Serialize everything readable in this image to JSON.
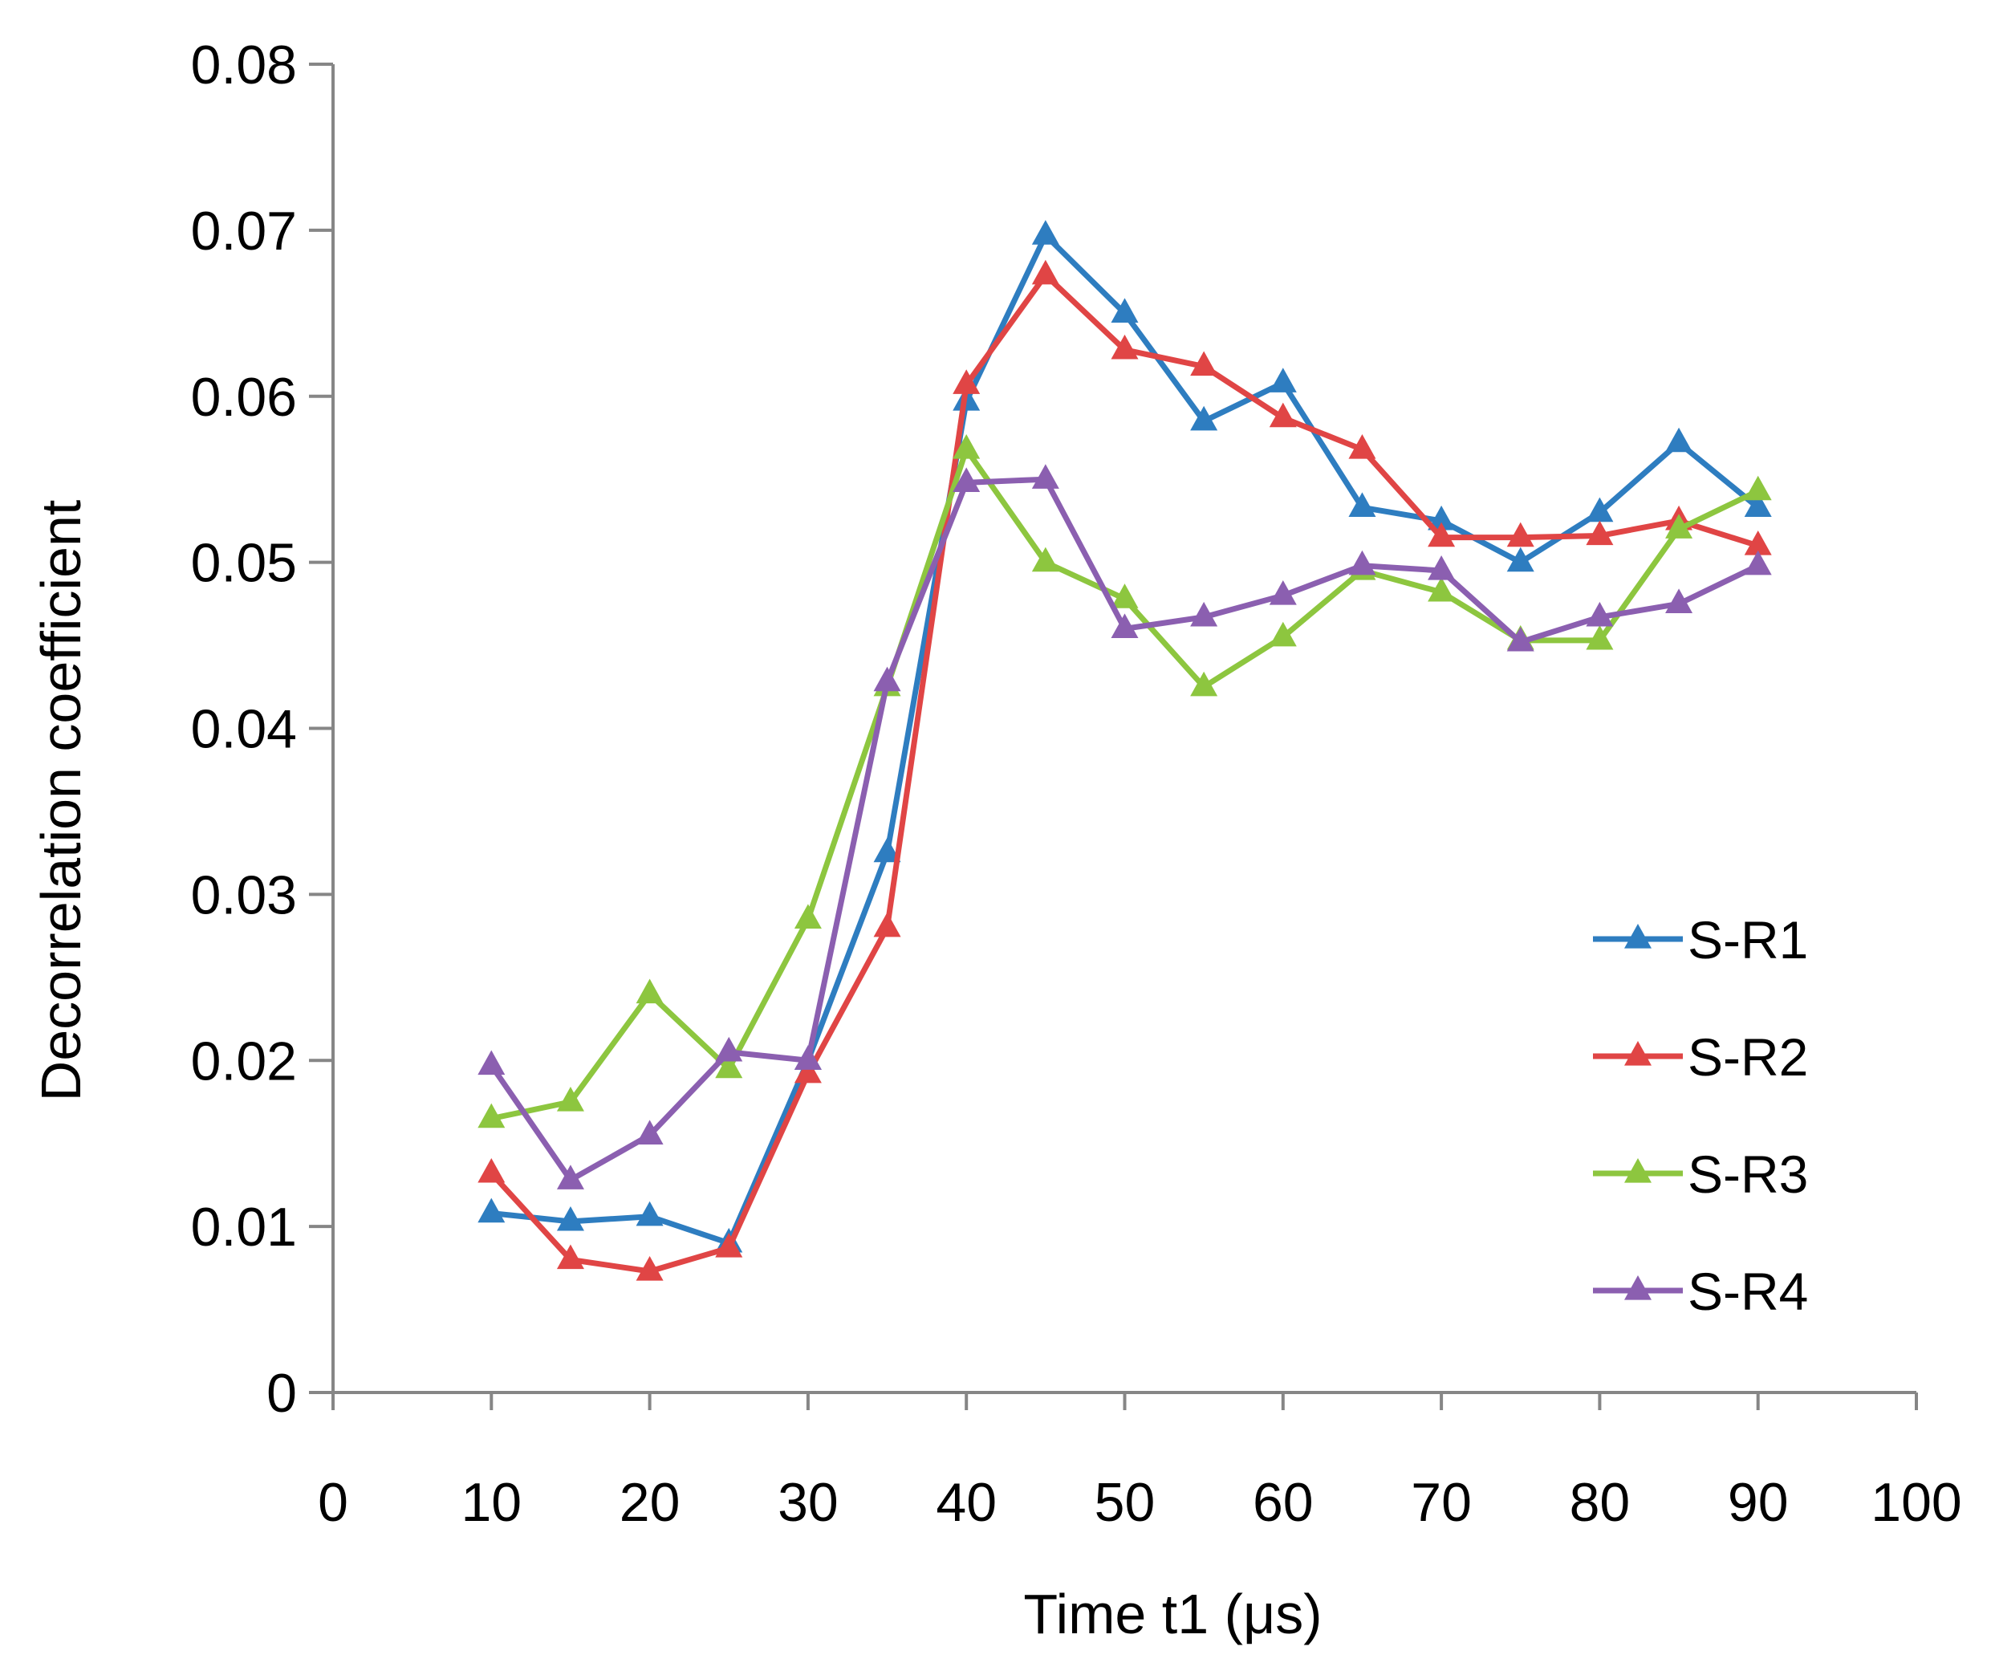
{
  "chart_data": {
    "type": "line",
    "title": "",
    "xlabel": "Time t1 (μs)",
    "ylabel": "Decorrelation coefficient",
    "xlim": [
      0,
      100
    ],
    "ylim": [
      0,
      0.08
    ],
    "xticks": [
      "0",
      "10",
      "20",
      "30",
      "40",
      "50",
      "60",
      "70",
      "80",
      "90",
      "100"
    ],
    "yticks": [
      "0",
      "0.01",
      "0.02",
      "0.03",
      "0.04",
      "0.05",
      "0.06",
      "0.07",
      "0.08"
    ],
    "x": [
      10,
      15,
      20,
      25,
      30,
      35,
      40,
      45,
      50,
      55,
      60,
      65,
      70,
      75,
      80,
      85,
      90
    ],
    "series": [
      {
        "name": "S-R1",
        "color": "#2E7DC0",
        "values": [
          0.0108,
          0.0103,
          0.0106,
          0.009,
          0.02,
          0.0325,
          0.0597,
          0.0697,
          0.065,
          0.0585,
          0.0608,
          0.0533,
          0.0525,
          0.05,
          0.053,
          0.0572,
          0.0533
        ]
      },
      {
        "name": "S-R2",
        "color": "#E04545",
        "values": [
          0.0132,
          0.008,
          0.0073,
          0.0087,
          0.0192,
          0.028,
          0.0607,
          0.0673,
          0.0628,
          0.0618,
          0.0587,
          0.0568,
          0.0515,
          0.0515,
          0.0516,
          0.0525,
          0.051
        ]
      },
      {
        "name": "S-R3",
        "color": "#8DC63F",
        "values": [
          0.0165,
          0.0175,
          0.024,
          0.0195,
          0.0285,
          0.0425,
          0.0568,
          0.05,
          0.0478,
          0.0425,
          0.0455,
          0.0495,
          0.0482,
          0.0453,
          0.0453,
          0.052,
          0.0543
        ]
      },
      {
        "name": "S-R4",
        "color": "#8B5FB0",
        "values": [
          0.0197,
          0.0128,
          0.0155,
          0.0205,
          0.02,
          0.0428,
          0.0548,
          0.055,
          0.046,
          0.0467,
          0.048,
          0.0498,
          0.0495,
          0.0452,
          0.0467,
          0.0475,
          0.0498
        ]
      }
    ],
    "legend_position": "right",
    "grid": false
  }
}
